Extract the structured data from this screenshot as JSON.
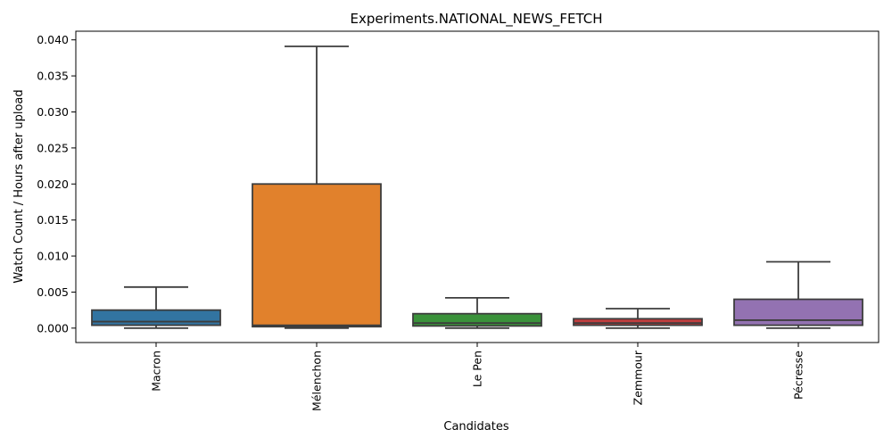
{
  "chart_data": {
    "type": "box",
    "title": "Experiments.NATIONAL_NEWS_FETCH",
    "xlabel": "Candidates",
    "ylabel": "Watch Count / Hours after upload",
    "ylim": [
      -0.002,
      0.0412
    ],
    "yticks": [
      "0.000",
      "0.005",
      "0.010",
      "0.015",
      "0.020",
      "0.025",
      "0.030",
      "0.035",
      "0.040"
    ],
    "grid": false,
    "categories": [
      "Macron",
      "Mélenchon",
      "Le Pen",
      "Zemmour",
      "Pécresse"
    ],
    "boxes": [
      {
        "name": "Macron",
        "whisker_low": 0.0,
        "q1": 0.0004,
        "median": 0.0009,
        "q3": 0.0025,
        "whisker_high": 0.0057,
        "color": "#3274a1"
      },
      {
        "name": "Mélenchon",
        "whisker_low": 0.0,
        "q1": 0.0002,
        "median": 0.0004,
        "q3": 0.02,
        "whisker_high": 0.0391,
        "color": "#e1812c"
      },
      {
        "name": "Le Pen",
        "whisker_low": 0.0,
        "q1": 0.0003,
        "median": 0.0007,
        "q3": 0.002,
        "whisker_high": 0.0042,
        "color": "#3a923a"
      },
      {
        "name": "Zemmour",
        "whisker_low": 0.0,
        "q1": 0.0004,
        "median": 0.0007,
        "q3": 0.0013,
        "whisker_high": 0.0027,
        "color": "#c03d3e"
      },
      {
        "name": "Pécresse",
        "whisker_low": 0.0,
        "q1": 0.0004,
        "median": 0.0011,
        "q3": 0.004,
        "whisker_high": 0.0092,
        "color": "#9372b2"
      }
    ]
  }
}
